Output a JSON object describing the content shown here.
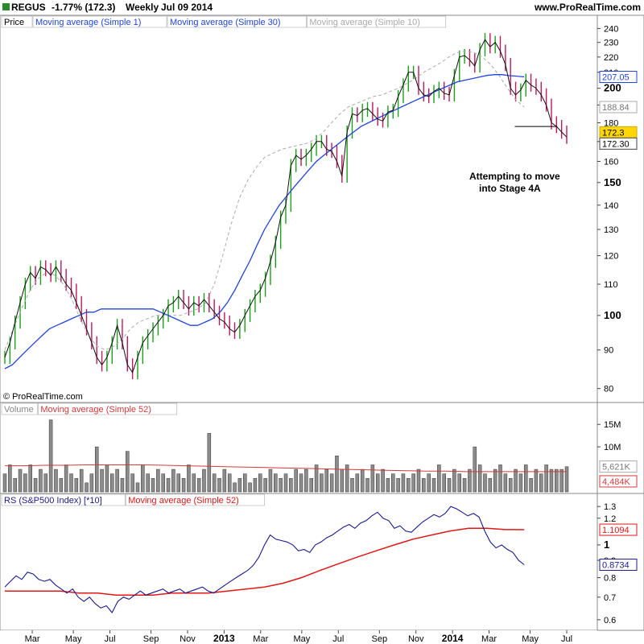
{
  "header": {
    "symbol": "REGUS",
    "change": "-1.77% (172.3)",
    "period": "Weekly",
    "date": "Jul 09 2014",
    "site": "www.ProRealTime.com"
  },
  "copyright": "© ProRealTime.com",
  "annotation": {
    "line1": "Attempting to move",
    "line2": "into Stage 4A"
  },
  "colors": {
    "up_bar": "#1aa01a",
    "down_bar": "#c0175d",
    "close_line": "#111111",
    "ma30": "#2244dd",
    "ma10": "#aaaaaa",
    "volume_bar": "#8c8c8c",
    "volume_ma": "#d43a3a",
    "rs_line": "#1a1a8c",
    "rs_ma": "#e01818",
    "badge_price": "#ffd700"
  },
  "chart_data": [
    {
      "type": "line",
      "panel": "price",
      "legend": [
        "Price",
        "Moving average (Simple 1)",
        "Moving average (Simple 30)",
        "Moving average (Simple 10)"
      ],
      "y_scale": "log",
      "ylim": [
        78,
        245
      ],
      "y_ticks": [
        {
          "value": 240,
          "label": "240"
        },
        {
          "value": 230,
          "label": "230"
        },
        {
          "value": 220,
          "label": "220"
        },
        {
          "value": 210,
          "label": "210"
        },
        {
          "value": 200,
          "label": "200"
        },
        {
          "value": 190,
          "label": "190"
        },
        {
          "value": 180,
          "label": "180"
        },
        {
          "value": 170,
          "label": "170"
        },
        {
          "value": 160,
          "label": "160"
        },
        {
          "value": 150,
          "label": "150"
        },
        {
          "value": 140,
          "label": "140"
        },
        {
          "value": 130,
          "label": "130"
        },
        {
          "value": 120,
          "label": "120"
        },
        {
          "value": 110,
          "label": "110"
        },
        {
          "value": 100,
          "label": "100"
        },
        {
          "value": 90,
          "label": "90"
        },
        {
          "value": 80,
          "label": "80"
        }
      ],
      "bold_ticks": [
        "200",
        "150",
        "100"
      ],
      "x_weeks": 120,
      "close": [
        88,
        92,
        98,
        104,
        110,
        114,
        112,
        116,
        115,
        113,
        116,
        113,
        110,
        108,
        104,
        100,
        96,
        92,
        88,
        86,
        88,
        92,
        97,
        92,
        86,
        84,
        88,
        92,
        94,
        96,
        98,
        100,
        103,
        104,
        106,
        104,
        102,
        104,
        103,
        105,
        103,
        101,
        99,
        98,
        96,
        95,
        97,
        100,
        103,
        106,
        108,
        112,
        118,
        125,
        135,
        140,
        158,
        163,
        161,
        163,
        166,
        170,
        170,
        166,
        165,
        160,
        153,
        175,
        185,
        184,
        187,
        188,
        185,
        182,
        181,
        186,
        187,
        195,
        202,
        210,
        210,
        200,
        196,
        195,
        198,
        200,
        197,
        196,
        208,
        220,
        221,
        218,
        214,
        225,
        232,
        227,
        230,
        224,
        215,
        200,
        196,
        199,
        205,
        202,
        200,
        196,
        190,
        180,
        178,
        175,
        172.3
      ],
      "ma30": [
        85,
        86,
        88,
        90,
        92,
        94,
        96,
        97,
        98,
        99,
        100,
        101,
        101,
        102,
        102,
        102,
        102,
        102,
        102,
        102,
        102,
        101,
        100,
        99,
        98,
        97,
        97,
        98,
        99,
        101,
        104,
        108,
        113,
        118,
        124,
        130,
        135,
        140,
        144,
        148,
        152,
        156,
        160,
        163,
        166,
        169,
        172,
        175,
        178,
        180,
        182,
        184,
        186,
        188,
        190,
        192,
        194,
        196,
        198,
        200,
        202,
        204,
        205,
        206,
        207,
        208,
        208.5,
        208.5,
        207.8,
        207.5,
        207.05
      ],
      "ma30_start_week": 0,
      "ma30_end_week": 110,
      "ma10": [
        90,
        96,
        102,
        108,
        112,
        114,
        113,
        110,
        105,
        99,
        94,
        91,
        90,
        91,
        93,
        96,
        98,
        99,
        100,
        100,
        100,
        100,
        101,
        102,
        104,
        110,
        120,
        132,
        143,
        151,
        157,
        162,
        164,
        166,
        167,
        168,
        169,
        171,
        175,
        180,
        185,
        189,
        191,
        193,
        195,
        196,
        198,
        200,
        203,
        206,
        210,
        213,
        216,
        220,
        223,
        224,
        223,
        220,
        215,
        208,
        200,
        193,
        188.84
      ],
      "ma10_start_week": 0,
      "ma10_end_week": 110,
      "last_values": {
        "ma30": "207.05",
        "ma10": "188.84",
        "price": "172.3",
        "close_label": "172.30"
      },
      "support_level": 178
    },
    {
      "type": "bar",
      "panel": "volume",
      "legend": [
        "Volume",
        "Moving average (Simple 52)"
      ],
      "ylim": [
        0,
        17
      ],
      "y_ticks": [
        {
          "value": 15,
          "label": "15M"
        },
        {
          "value": 10,
          "label": "10M"
        }
      ],
      "values": [
        4,
        6,
        3,
        5,
        4,
        6,
        3,
        5,
        4,
        16,
        5,
        3,
        6,
        4,
        3,
        5,
        2,
        4,
        10,
        5,
        6,
        4,
        5,
        3,
        9,
        4,
        2,
        6,
        4,
        3,
        5,
        4,
        3,
        5,
        4,
        3,
        6,
        4,
        3,
        5,
        13,
        4,
        3,
        5,
        4,
        2,
        3,
        4,
        2,
        3,
        4,
        3,
        5,
        4,
        3,
        4,
        3,
        5,
        4,
        5,
        3,
        6,
        4,
        5,
        4,
        8,
        5,
        6,
        3,
        4,
        5,
        3,
        6,
        4,
        5,
        3,
        4,
        3,
        4,
        3,
        4,
        5,
        3,
        4,
        3,
        6,
        4,
        3,
        5,
        4,
        3,
        5,
        10,
        6,
        4,
        3,
        5,
        6,
        4,
        3,
        5,
        4,
        6,
        3,
        5,
        4,
        6,
        5,
        5,
        5,
        5.6
      ],
      "ma52": [
        5.8,
        5.8,
        5.9,
        5.9,
        6.0,
        6.0,
        6.0,
        6.0,
        5.9,
        5.8,
        5.7,
        5.6,
        5.5,
        5.4,
        5.3,
        5.2,
        5.1,
        5.0,
        4.9,
        4.8,
        4.7,
        4.6,
        4.6,
        4.5,
        4.5,
        4.5,
        4.5,
        4.5,
        4.484
      ],
      "last_values": {
        "volume": "5,621K",
        "ma52": "4,484K"
      }
    },
    {
      "type": "line",
      "panel": "rs",
      "legend": [
        "RS (S&P500 Index) [*10]",
        "Moving average (Simple 52)"
      ],
      "y_scale": "log",
      "ylim": [
        0.58,
        1.36
      ],
      "y_ticks": [
        {
          "value": 1.3,
          "label": "1.3"
        },
        {
          "value": 1.2,
          "label": "1.2"
        },
        {
          "value": 1.0,
          "label": "1"
        },
        {
          "value": 0.9,
          "label": "0.9"
        },
        {
          "value": 0.8,
          "label": "0.8"
        },
        {
          "value": 0.7,
          "label": "0.7"
        },
        {
          "value": 0.6,
          "label": "0.6"
        }
      ],
      "rs": [
        0.75,
        0.78,
        0.81,
        0.79,
        0.83,
        0.82,
        0.79,
        0.78,
        0.79,
        0.76,
        0.74,
        0.72,
        0.74,
        0.7,
        0.68,
        0.7,
        0.67,
        0.65,
        0.66,
        0.63,
        0.68,
        0.7,
        0.69,
        0.71,
        0.73,
        0.71,
        0.72,
        0.73,
        0.74,
        0.72,
        0.73,
        0.74,
        0.72,
        0.73,
        0.74,
        0.75,
        0.73,
        0.72,
        0.74,
        0.76,
        0.78,
        0.8,
        0.82,
        0.84,
        0.87,
        0.92,
        1.0,
        1.07,
        1.04,
        1.03,
        1.02,
        1.0,
        0.96,
        0.97,
        0.95,
        1.0,
        1.02,
        1.05,
        1.07,
        1.1,
        1.13,
        1.15,
        1.12,
        1.16,
        1.18,
        1.22,
        1.25,
        1.2,
        1.18,
        1.12,
        1.14,
        1.1,
        1.09,
        1.13,
        1.17,
        1.2,
        1.23,
        1.21,
        1.24,
        1.3,
        1.28,
        1.25,
        1.22,
        1.24,
        1.21,
        1.1,
        1.02,
        0.98,
        1.0,
        0.97,
        0.95,
        0.9,
        0.8734
      ],
      "rs_start_week": 0,
      "rs_end_week": 110,
      "ma52": [
        0.73,
        0.73,
        0.73,
        0.73,
        0.72,
        0.72,
        0.71,
        0.71,
        0.71,
        0.72,
        0.72,
        0.72,
        0.73,
        0.74,
        0.75,
        0.77,
        0.8,
        0.84,
        0.88,
        0.92,
        0.96,
        1.0,
        1.04,
        1.07,
        1.1,
        1.12,
        1.12,
        1.11,
        1.1094
      ],
      "ma52_start_week": 0,
      "ma52_end_week": 110,
      "last_values": {
        "ma52": "1.1094",
        "rs": "0.8734"
      }
    }
  ],
  "x_axis": {
    "labels": [
      {
        "week": 6,
        "label": "Mar",
        "bold": false
      },
      {
        "week": 15,
        "label": "May",
        "bold": false
      },
      {
        "week": 23,
        "label": "Jul",
        "bold": false
      },
      {
        "week": 32,
        "label": "Sep",
        "bold": false
      },
      {
        "week": 40,
        "label": "Nov",
        "bold": false
      },
      {
        "week": 48,
        "label": "2013",
        "bold": true
      },
      {
        "week": 56,
        "label": "Mar",
        "bold": false
      },
      {
        "week": 65,
        "label": "May",
        "bold": false
      },
      {
        "week": 73,
        "label": "Jul",
        "bold": false
      },
      {
        "week": 82,
        "label": "Sep",
        "bold": false
      },
      {
        "week": 90,
        "label": "Nov",
        "bold": false
      },
      {
        "week": 98,
        "label": "2014",
        "bold": true
      },
      {
        "week": 106,
        "label": "Mar",
        "bold": false
      },
      {
        "week": 115,
        "label": "May",
        "bold": false
      },
      {
        "week": 123,
        "label": "Jul",
        "bold": false
      }
    ]
  }
}
